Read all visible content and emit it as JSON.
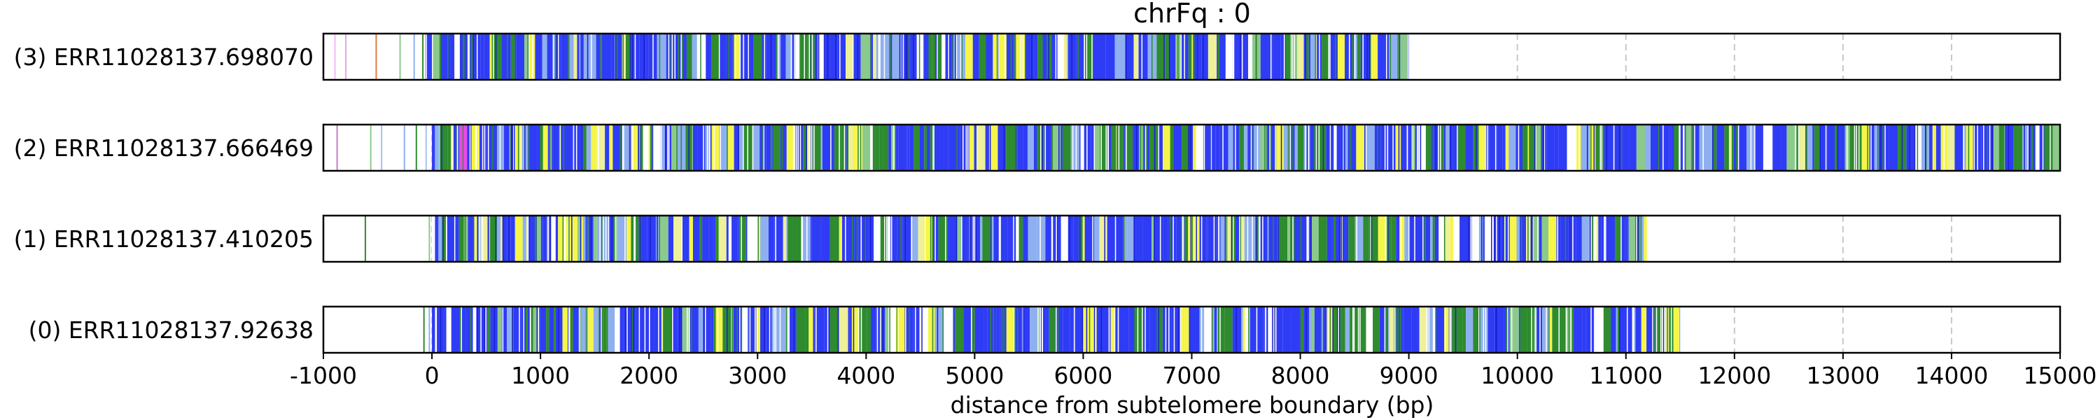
{
  "chart_data": {
    "type": "track",
    "title": "chrFq : 0",
    "xlabel": "distance from subtelomere boundary (bp)",
    "xlim": [
      -1000,
      15000
    ],
    "xticks": [
      -1000,
      0,
      1000,
      2000,
      3000,
      4000,
      5000,
      6000,
      7000,
      8000,
      9000,
      10000,
      11000,
      12000,
      13000,
      14000,
      15000
    ],
    "grid": "vertical dashed gridlines at every 1000 bp",
    "colors": {
      "blue": "#2f3cf5",
      "light_blue": "#8fb0f0",
      "green": "#2e8b2e",
      "light_green": "#8cc98c",
      "yellow": "#f5f54a",
      "pale_yellow": "#eef09a",
      "pink": "#e64ce6",
      "orange": "#e07a3a",
      "grid": "#c8c8c8"
    },
    "tracks": [
      {
        "label": "(3) ERR11028137.698070",
        "read_start": -1000,
        "read_end": 9000,
        "sparse_marks": [
          {
            "x": -900,
            "color": "#f5b8f5"
          },
          {
            "x": -800,
            "color": "#e6a8e6"
          },
          {
            "x": -520,
            "color": "#e07a3a"
          },
          {
            "x": -300,
            "color": "#8cc98c"
          },
          {
            "x": -170,
            "color": "#8fb0f0"
          },
          {
            "x": -90,
            "color": "#2e8b2e"
          }
        ],
        "dense_region": [
          -60,
          9000
        ],
        "seed": 11
      },
      {
        "label": "(2) ERR11028137.666469",
        "read_start": -1000,
        "read_end": 15000,
        "sparse_marks": [
          {
            "x": -880,
            "color": "#c87ac8"
          },
          {
            "x": -570,
            "color": "#8cc98c"
          },
          {
            "x": -470,
            "color": "#a8c0f0"
          },
          {
            "x": -260,
            "color": "#8fb0f0"
          },
          {
            "x": -150,
            "color": "#2e8b2e"
          },
          {
            "x": -60,
            "color": "#a8c0f0"
          }
        ],
        "pink_marks": [
          250,
          290
        ],
        "dense_region": [
          0,
          15000
        ],
        "seed": 23
      },
      {
        "label": "(1) ERR11028137.410205",
        "read_start": -1000,
        "read_end": 11200,
        "sparse_marks": [
          {
            "x": -620,
            "color": "#2e8b2e"
          },
          {
            "x": -30,
            "color": "#8cc98c"
          }
        ],
        "dense_region": [
          0,
          11200
        ],
        "seed": 37
      },
      {
        "label": "(0) ERR11028137.92638",
        "read_start": -1000,
        "read_end": 11500,
        "sparse_marks": [
          {
            "x": -80,
            "color": "#2e8b2e"
          },
          {
            "x": -30,
            "color": "#8fb0f0"
          }
        ],
        "dense_region": [
          0,
          11500
        ],
        "seed": 53
      }
    ]
  }
}
